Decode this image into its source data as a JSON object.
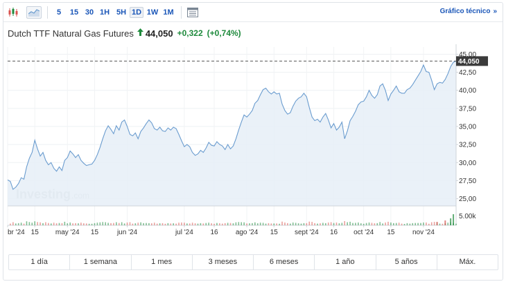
{
  "toolbar": {
    "icons": [
      "candlestick-chart-icon",
      "area-chart-icon",
      "table-view-icon"
    ],
    "periods": [
      {
        "label": "5",
        "active": false
      },
      {
        "label": "15",
        "active": false
      },
      {
        "label": "30",
        "active": false
      },
      {
        "label": "1H",
        "active": false
      },
      {
        "label": "5H",
        "active": false
      },
      {
        "label": "1D",
        "active": true
      },
      {
        "label": "1W",
        "active": false
      },
      {
        "label": "1M",
        "active": false
      }
    ],
    "tech_link": "Gráfico técnico",
    "tech_link_chevron": "»"
  },
  "instrument": {
    "name": "Dutch TTF Natural Gas Futures",
    "price": "44,050",
    "change": "+0,322",
    "change_pct": "(+0,74%)",
    "trend_icon": "up-arrow-icon"
  },
  "colors": {
    "line": "#6a9ccf",
    "area": "#e6eef7",
    "up": "#1e8a3c",
    "down": "#d9534f",
    "link": "#1a56b8",
    "price_label_bg": "#3b3b3b"
  },
  "watermark": {
    "brand": "Investing",
    "suffix": ".com"
  },
  "chart_data": {
    "type": "area",
    "y_ticks": [
      "45,00",
      "42,50",
      "40,00",
      "37,50",
      "35,00",
      "32,50",
      "30,00",
      "27,50",
      "25,00"
    ],
    "ylim": [
      24.0,
      46.0
    ],
    "volume_tick": "5.00k",
    "last_value_label": "44,050",
    "x_ticks": [
      {
        "label": "br '24",
        "index": 0
      },
      {
        "label": "15",
        "index": 10
      },
      {
        "label": "may '24",
        "index": 22
      },
      {
        "label": "15",
        "index": 32
      },
      {
        "label": "jun '24",
        "index": 44
      },
      {
        "label": "jul '24",
        "index": 65
      },
      {
        "label": "16",
        "index": 76
      },
      {
        "label": "ago '24",
        "index": 88
      },
      {
        "label": "15",
        "index": 98
      },
      {
        "label": "sept '24",
        "index": 110
      },
      {
        "label": "16",
        "index": 120
      },
      {
        "label": "oct '24",
        "index": 131
      },
      {
        "label": "15",
        "index": 141
      },
      {
        "label": "nov '24",
        "index": 153
      }
    ],
    "values": [
      27.6,
      27.4,
      26.3,
      26.6,
      27.1,
      27.9,
      27.7,
      29.4,
      30.6,
      31.4,
      33.1,
      31.9,
      30.9,
      31.4,
      30.3,
      29.7,
      30.0,
      29.2,
      28.8,
      29.4,
      28.9,
      30.3,
      30.7,
      31.6,
      31.2,
      30.7,
      31.1,
      30.3,
      29.9,
      29.6,
      29.7,
      29.8,
      30.3,
      31.1,
      32.1,
      33.3,
      34.4,
      35.1,
      34.6,
      34.0,
      35.1,
      34.5,
      35.6,
      35.9,
      35.0,
      33.9,
      33.7,
      34.1,
      33.3,
      34.3,
      34.8,
      35.4,
      35.9,
      35.5,
      34.7,
      34.5,
      34.9,
      34.4,
      34.3,
      34.8,
      34.5,
      34.9,
      34.7,
      33.9,
      33.0,
      32.2,
      32.5,
      32.2,
      31.4,
      31.0,
      31.2,
      31.7,
      31.4,
      32.0,
      32.8,
      32.4,
      32.3,
      32.9,
      32.5,
      32.3,
      31.8,
      32.5,
      31.9,
      32.3,
      33.3,
      34.5,
      35.6,
      36.6,
      36.3,
      36.7,
      37.2,
      38.2,
      38.6,
      39.4,
      40.1,
      40.3,
      39.8,
      39.5,
      39.8,
      39.5,
      39.6,
      38.1,
      37.2,
      36.7,
      36.9,
      37.8,
      38.5,
      38.9,
      39.1,
      39.6,
      39.1,
      37.6,
      36.3,
      35.8,
      36.0,
      35.6,
      36.3,
      36.8,
      35.9,
      34.8,
      35.4,
      34.5,
      34.9,
      35.6,
      33.3,
      34.4,
      35.8,
      36.4,
      37.1,
      38.0,
      38.4,
      38.5,
      39.1,
      40.0,
      39.3,
      38.9,
      39.4,
      40.6,
      40.9,
      40.0,
      38.6,
      39.5,
      40.0,
      40.6,
      39.8,
      39.6,
      39.6,
      40.1,
      40.3,
      40.8,
      41.4,
      42.0,
      42.6,
      43.5,
      42.6,
      42.5,
      41.4,
      40.1,
      40.9,
      41.1,
      41.0,
      41.5,
      42.3,
      43.3,
      43.9,
      44.05
    ]
  },
  "range_buttons": [
    "1 día",
    "1 semana",
    "1 mes",
    "3 meses",
    "6 meses",
    "1 año",
    "5 años",
    "Máx."
  ]
}
